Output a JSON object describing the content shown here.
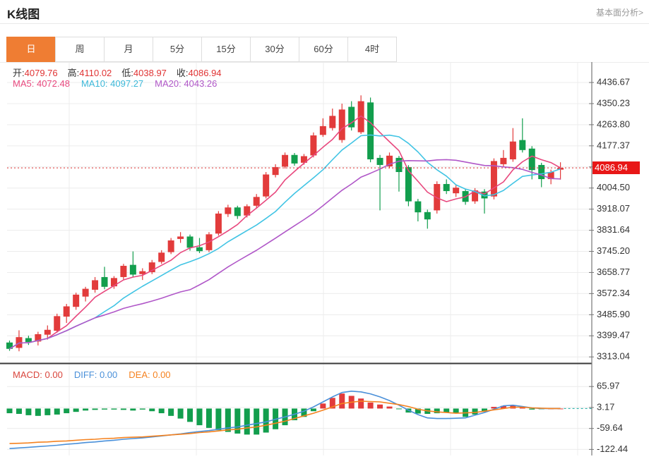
{
  "header": {
    "title": "K线图",
    "analysis_link": "基本面分析>"
  },
  "tabs": [
    {
      "name": "day",
      "label": "日",
      "active": true
    },
    {
      "name": "week",
      "label": "周",
      "active": false
    },
    {
      "name": "month",
      "label": "月",
      "active": false
    },
    {
      "name": "5min",
      "label": "5分",
      "active": false
    },
    {
      "name": "15min",
      "label": "15分",
      "active": false
    },
    {
      "name": "30min",
      "label": "30分",
      "active": false
    },
    {
      "name": "60min",
      "label": "60分",
      "active": false
    },
    {
      "name": "4hour",
      "label": "4时",
      "active": false
    }
  ],
  "ohlc_legend": {
    "open_label": "开:",
    "open_value": "4079.76",
    "high_label": "高:",
    "high_value": "4110.02",
    "low_label": "低:",
    "low_value": "4038.97",
    "close_label": "收:",
    "close_value": "4086.94"
  },
  "ma_legend": {
    "ma5_label": "MA5:",
    "ma5_value": "4072.48",
    "ma10_label": "MA10:",
    "ma10_value": "4097.27",
    "ma20_label": "MA20:",
    "ma20_value": "4043.26"
  },
  "macd_legend": {
    "macd_label": "MACD:",
    "macd_value": "0.00",
    "diff_label": "DIFF:",
    "diff_value": "0.00",
    "dea_label": "DEA:",
    "dea_value": "0.00"
  },
  "price_marker": {
    "value": "4086.94"
  },
  "colors": {
    "up": "#e23b3b",
    "down": "#129e4d",
    "ma5": "#e8487e",
    "ma10": "#41c4e4",
    "ma20": "#b057c8",
    "dif": "#4a90d9",
    "dea": "#f5821f",
    "dotted": "#e03333",
    "grid": "#ececec",
    "axis": "#777",
    "separator": "#3a3a3a",
    "label": "#333",
    "dash_tail": "#2fb3ab"
  },
  "chart_data": {
    "type": "candlestick",
    "title": "K线图 (daily K-line with MA5/MA10/MA20 and MACD panel)",
    "legend_position": "top-left-overlay",
    "grid": true,
    "y_axis_side": "right",
    "current_price": 4086.94,
    "price": {
      "tick_values": [
        4436.67,
        4350.23,
        4263.8,
        4177.37,
        4090.94,
        4004.5,
        3918.07,
        3831.64,
        3745.2,
        3658.77,
        3572.34,
        3485.9,
        3399.47,
        3313.04
      ],
      "tick_labels": [
        "4436.67",
        "4350.23",
        "4263.80",
        "4177.37",
        "",
        "4004.50",
        "3918.07",
        "3831.64",
        "3745.20",
        "3658.77",
        "3572.34",
        "3485.90",
        "3399.47",
        "3313.04"
      ],
      "ma_periods": [
        5,
        10,
        20
      ],
      "candles_format": "[open,high,low,close]",
      "candles": [
        [
          3372,
          3380,
          3338,
          3346
        ],
        [
          3350,
          3422,
          3336,
          3394
        ],
        [
          3390,
          3400,
          3362,
          3374
        ],
        [
          3376,
          3416,
          3360,
          3406
        ],
        [
          3404,
          3442,
          3384,
          3424
        ],
        [
          3420,
          3490,
          3412,
          3480
        ],
        [
          3478,
          3530,
          3452,
          3520
        ],
        [
          3518,
          3576,
          3506,
          3568
        ],
        [
          3560,
          3600,
          3540,
          3592
        ],
        [
          3588,
          3640,
          3576,
          3627
        ],
        [
          3640,
          3682,
          3590,
          3600
        ],
        [
          3602,
          3644,
          3592,
          3636
        ],
        [
          3640,
          3694,
          3630,
          3686
        ],
        [
          3690,
          3745,
          3640,
          3650
        ],
        [
          3652,
          3676,
          3628,
          3664
        ],
        [
          3660,
          3710,
          3652,
          3700
        ],
        [
          3702,
          3750,
          3694,
          3740
        ],
        [
          3742,
          3800,
          3734,
          3790
        ],
        [
          3796,
          3824,
          3780,
          3806
        ],
        [
          3806,
          3814,
          3748,
          3760
        ],
        [
          3762,
          3800,
          3738,
          3746
        ],
        [
          3750,
          3824,
          3742,
          3815
        ],
        [
          3818,
          3910,
          3810,
          3900
        ],
        [
          3898,
          3936,
          3886,
          3925
        ],
        [
          3925,
          3932,
          3878,
          3890
        ],
        [
          3892,
          3938,
          3884,
          3930
        ],
        [
          3932,
          3980,
          3924,
          3968
        ],
        [
          3970,
          4070,
          3962,
          4060
        ],
        [
          4058,
          4102,
          4048,
          4090
        ],
        [
          4092,
          4150,
          4084,
          4140
        ],
        [
          4140,
          4148,
          4096,
          4105
        ],
        [
          4108,
          4144,
          4100,
          4135
        ],
        [
          4138,
          4232,
          4130,
          4220
        ],
        [
          4222,
          4290,
          4214,
          4258
        ],
        [
          4250,
          4330,
          4240,
          4300
        ],
        [
          4201,
          4350,
          4190,
          4326
        ],
        [
          4337,
          4360,
          4240,
          4253
        ],
        [
          4233,
          4384,
          4226,
          4360
        ],
        [
          4355,
          4375,
          4110,
          4122
        ],
        [
          4128,
          4140,
          3913,
          4099
        ],
        [
          4093,
          4150,
          4085,
          4137
        ],
        [
          4128,
          4136,
          3990,
          4070
        ],
        [
          4090,
          4098,
          3930,
          3950
        ],
        [
          3950,
          3960,
          3868,
          3905
        ],
        [
          3906,
          3916,
          3838,
          3876
        ],
        [
          3913,
          4032,
          3900,
          4021
        ],
        [
          4021,
          4040,
          3980,
          3992
        ],
        [
          3983,
          4018,
          3968,
          4006
        ],
        [
          3992,
          4000,
          3936,
          3948
        ],
        [
          3950,
          4004,
          3940,
          3995
        ],
        [
          3990,
          4000,
          3900,
          3962
        ],
        [
          3970,
          4126,
          3958,
          4115
        ],
        [
          4102,
          4160,
          4092,
          4128
        ],
        [
          4122,
          4250,
          4112,
          4195
        ],
        [
          4201,
          4290,
          4150,
          4160
        ],
        [
          4166,
          4176,
          4040,
          4078
        ],
        [
          4099,
          4108,
          4008,
          4041
        ],
        [
          4041,
          4080,
          4020,
          4070
        ],
        [
          4079.76,
          4110.02,
          4038.97,
          4086.94
        ]
      ]
    },
    "macd": {
      "tick_values": [
        65.97,
        3.17,
        -59.64,
        -122.44
      ],
      "tick_labels": [
        "65.97",
        "3.17",
        "-59.64",
        "-122.44"
      ],
      "hist": [
        -14,
        -16,
        -20,
        -22,
        -20,
        -18,
        -14,
        -10,
        -6,
        -4,
        -3,
        -3,
        -4,
        -6,
        -3,
        -8,
        -14,
        -22,
        -30,
        -40,
        -50,
        -58,
        -65,
        -70,
        -75,
        -78,
        -78,
        -72,
        -62,
        -50,
        -35,
        -25,
        -8,
        15,
        32,
        45,
        38,
        30,
        18,
        12,
        6,
        -2,
        -12,
        -15,
        -16,
        -14,
        -12,
        -15,
        -25,
        -18,
        -10,
        5,
        8,
        10,
        4,
        -3,
        -2,
        0,
        0
      ],
      "dif": [
        -120,
        -118,
        -116,
        -114,
        -112,
        -110,
        -107,
        -105,
        -102,
        -100,
        -97,
        -95,
        -92,
        -90,
        -88,
        -85,
        -82,
        -79,
        -76,
        -72,
        -69,
        -66,
        -62,
        -58,
        -55,
        -50,
        -45,
        -40,
        -32,
        -25,
        -17,
        -8,
        5,
        20,
        35,
        48,
        52,
        50,
        44,
        35,
        24,
        10,
        -5,
        -18,
        -28,
        -30,
        -30,
        -29,
        -28,
        -20,
        -12,
        -2,
        8,
        10,
        6,
        2,
        0,
        0,
        0
      ],
      "dea": [
        -105,
        -104,
        -103,
        -101,
        -100,
        -98,
        -97,
        -95,
        -93,
        -92,
        -90,
        -89,
        -87,
        -86,
        -85,
        -83,
        -81,
        -79,
        -77,
        -75,
        -72,
        -70,
        -67,
        -64,
        -62,
        -58,
        -55,
        -50,
        -44,
        -38,
        -30,
        -22,
        -14,
        -5,
        5,
        15,
        19,
        22,
        21,
        20,
        16,
        12,
        6,
        -2,
        -7,
        -10,
        -12,
        -14,
        -13,
        -12,
        -8,
        -4,
        0,
        4,
        4,
        2,
        1,
        0,
        0
      ]
    }
  }
}
